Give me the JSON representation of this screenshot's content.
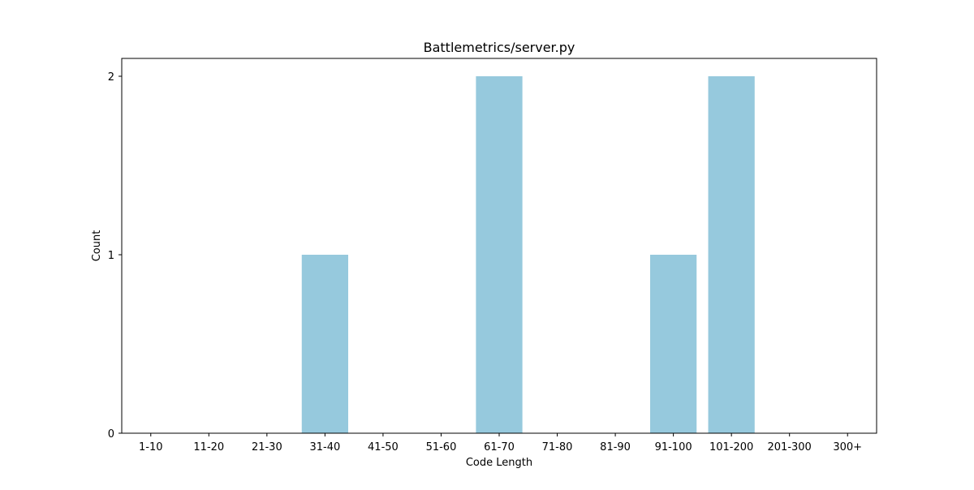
{
  "chart_data": {
    "type": "bar",
    "title": "Battlemetrics/server.py",
    "xlabel": "Code Length",
    "ylabel": "Count",
    "categories": [
      "1-10",
      "11-20",
      "21-30",
      "31-40",
      "41-50",
      "51-60",
      "61-70",
      "71-80",
      "81-90",
      "91-100",
      "101-200",
      "201-300",
      "300+"
    ],
    "values": [
      0,
      0,
      0,
      1,
      0,
      0,
      2,
      0,
      0,
      1,
      2,
      0,
      0
    ],
    "yticks": [
      "0",
      "1",
      "2"
    ],
    "ylim": [
      0,
      2.1
    ],
    "grid": false,
    "bar_color": "#96c9dd"
  }
}
